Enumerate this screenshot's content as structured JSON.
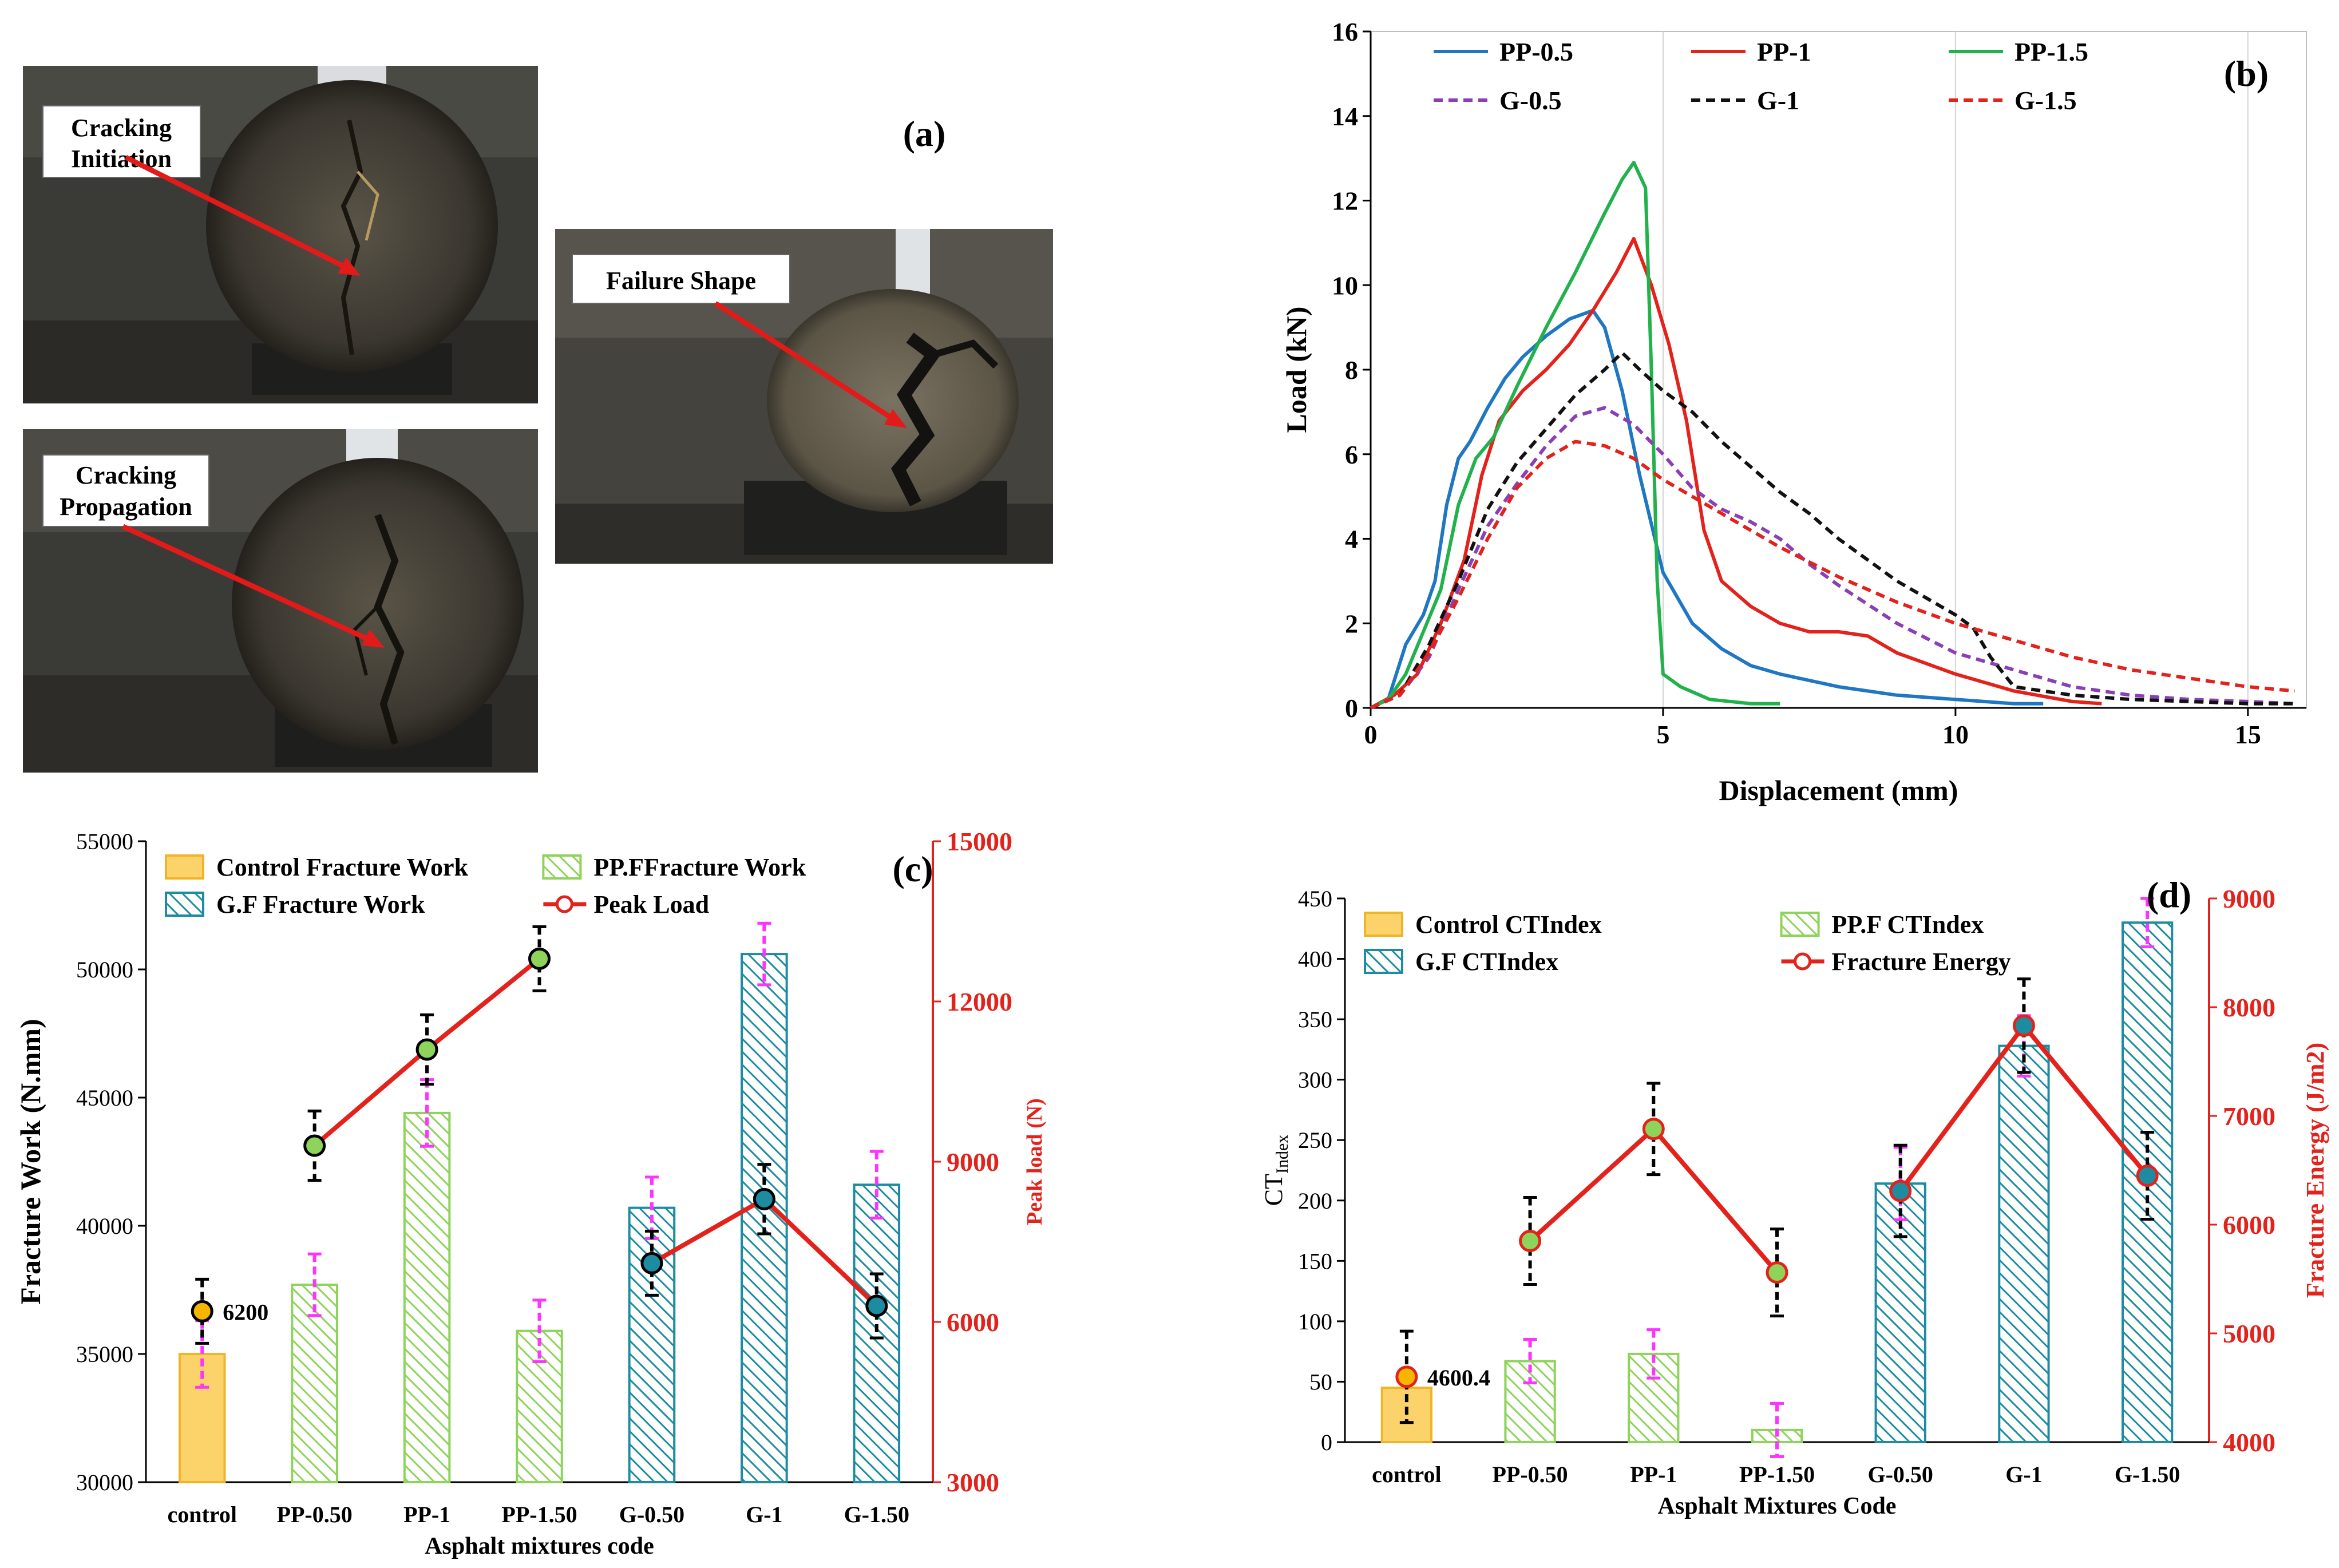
{
  "panel_a": {
    "label": "(a)",
    "photo_initiation": {
      "callout": [
        "Cracking",
        "Initiation"
      ]
    },
    "photo_propagation": {
      "callout": [
        "Cracking",
        "Propagation"
      ]
    },
    "photo_failure": {
      "callout": [
        "Failure Shape"
      ]
    }
  },
  "chart_data": [
    {
      "id": "b",
      "type": "line",
      "panel_label": "(b)",
      "xlabel": "Displacement (mm)",
      "ylabel": "Load (kN)",
      "xlim": [
        0,
        16
      ],
      "ylim": [
        0,
        16
      ],
      "xticks": [
        0,
        5,
        10,
        15
      ],
      "yticks": [
        0,
        2,
        4,
        6,
        8,
        10,
        12,
        14,
        16
      ],
      "grid": "vertical",
      "legend_position": "top",
      "series": [
        {
          "name": "PP-0.5",
          "color": "#1f77c4",
          "dash": "solid",
          "x": [
            0,
            0.3,
            0.6,
            0.9,
            1.1,
            1.3,
            1.5,
            1.7,
            2.0,
            2.3,
            2.6,
            3.0,
            3.4,
            3.8,
            4.0,
            4.3,
            4.6,
            5.0,
            5.5,
            6.0,
            6.5,
            7.0,
            8.0,
            9.0,
            10.0,
            11.0,
            11.5
          ],
          "y": [
            0,
            0.2,
            1.5,
            2.2,
            3.0,
            4.8,
            5.9,
            6.3,
            7.1,
            7.8,
            8.3,
            8.8,
            9.2,
            9.4,
            9.0,
            7.5,
            5.5,
            3.2,
            2.0,
            1.4,
            1.0,
            0.8,
            0.5,
            0.3,
            0.2,
            0.1,
            0.1
          ]
        },
        {
          "name": "PP-1",
          "color": "#e3221c",
          "dash": "solid",
          "x": [
            0,
            0.4,
            0.8,
            1.2,
            1.6,
            1.9,
            2.2,
            2.6,
            3.0,
            3.4,
            3.8,
            4.2,
            4.5,
            4.8,
            5.1,
            5.4,
            5.7,
            6.0,
            6.5,
            7.0,
            7.5,
            8.0,
            8.5,
            9.0,
            10.0,
            11.0,
            12.0,
            12.5
          ],
          "y": [
            0,
            0.3,
            0.8,
            2.0,
            3.5,
            5.5,
            6.8,
            7.5,
            8.0,
            8.6,
            9.4,
            10.3,
            11.1,
            10.0,
            8.6,
            6.8,
            4.2,
            3.0,
            2.4,
            2.0,
            1.8,
            1.8,
            1.7,
            1.3,
            0.8,
            0.4,
            0.15,
            0.1
          ]
        },
        {
          "name": "PP-1.5",
          "color": "#21b24b",
          "dash": "solid",
          "x": [
            0,
            0.3,
            0.6,
            0.9,
            1.2,
            1.5,
            1.8,
            2.1,
            2.5,
            3.0,
            3.5,
            4.0,
            4.3,
            4.5,
            4.7,
            4.8,
            4.9,
            5.0,
            5.3,
            5.8,
            6.5,
            7.0
          ],
          "y": [
            0,
            0.2,
            0.8,
            1.8,
            2.8,
            4.8,
            5.9,
            6.4,
            7.6,
            9.0,
            10.3,
            11.7,
            12.5,
            12.9,
            12.3,
            8.0,
            3.0,
            0.8,
            0.5,
            0.2,
            0.1,
            0.1
          ]
        },
        {
          "name": "G-0.5",
          "color": "#8a3fb5",
          "dash": "dashed",
          "x": [
            0,
            0.5,
            1.0,
            1.5,
            2.0,
            2.5,
            3.0,
            3.5,
            4.0,
            4.5,
            5.0,
            5.5,
            6.0,
            6.5,
            7.0,
            7.5,
            8.0,
            9.0,
            10.0,
            11.0,
            12.0,
            13.0,
            14.0,
            15.0,
            15.8
          ],
          "y": [
            0,
            0.3,
            1.2,
            2.8,
            4.3,
            5.3,
            6.2,
            6.9,
            7.1,
            6.7,
            6.0,
            5.2,
            4.7,
            4.4,
            4.0,
            3.4,
            2.9,
            2.0,
            1.3,
            0.9,
            0.5,
            0.3,
            0.2,
            0.15,
            0.1
          ]
        },
        {
          "name": "G-1",
          "color": "#111111",
          "dash": "dashed",
          "x": [
            0,
            0.5,
            1.0,
            1.5,
            2.0,
            2.5,
            3.0,
            3.5,
            4.0,
            4.3,
            4.6,
            5.0,
            5.5,
            6.0,
            6.5,
            7.0,
            7.5,
            8.0,
            8.5,
            9.0,
            9.5,
            10.0,
            10.3,
            10.6,
            11.0,
            12.0,
            13.0,
            14.0,
            15.0,
            15.8
          ],
          "y": [
            0,
            0.3,
            1.5,
            3.0,
            4.7,
            5.8,
            6.6,
            7.4,
            8.0,
            8.4,
            8.0,
            7.5,
            7.0,
            6.3,
            5.7,
            5.1,
            4.6,
            4.0,
            3.5,
            3.0,
            2.6,
            2.2,
            1.9,
            1.2,
            0.5,
            0.3,
            0.2,
            0.15,
            0.1,
            0.1
          ]
        },
        {
          "name": "G-1.5",
          "color": "#e3221c",
          "dash": "dashed",
          "x": [
            0,
            0.5,
            1.0,
            1.5,
            2.0,
            2.5,
            3.0,
            3.5,
            4.0,
            4.5,
            5.0,
            5.5,
            6.0,
            7.0,
            8.0,
            9.0,
            10.0,
            11.0,
            12.0,
            13.0,
            14.0,
            15.0,
            15.8
          ],
          "y": [
            0,
            0.3,
            1.3,
            2.6,
            4.0,
            5.2,
            5.9,
            6.3,
            6.2,
            5.9,
            5.4,
            5.0,
            4.6,
            3.8,
            3.1,
            2.5,
            2.0,
            1.6,
            1.2,
            0.9,
            0.7,
            0.5,
            0.4
          ]
        }
      ]
    },
    {
      "id": "c",
      "type": "bar",
      "panel_label": "(c)",
      "xlabel": "Asphalt mixtures code",
      "ylabel": "Fracture Work (N.mm)",
      "y2label": "Peak load (N)",
      "categories": [
        "control",
        "PP-0.50",
        "PP-1",
        "PP-1.50",
        "G-0.50",
        "G-1",
        "G-1.50"
      ],
      "ylim": [
        30000,
        55000
      ],
      "yticks": [
        30000,
        35000,
        40000,
        45000,
        50000,
        55000
      ],
      "y2lim": [
        3000,
        15000
      ],
      "y2ticks": [
        3000,
        6000,
        9000,
        12000,
        15000
      ],
      "legend_position": "top",
      "legend": [
        "Control  Fracture Work",
        "PP.FFracture Work",
        "G.F Fracture Work",
        "Peak Load"
      ],
      "bars": {
        "values": [
          35000,
          37700,
          44400,
          35900,
          40700,
          50600,
          41600
        ],
        "errors": [
          1300,
          1200,
          1300,
          1200,
          1200,
          1200,
          1300
        ],
        "groups": [
          "control",
          "pp",
          "pp",
          "pp",
          "g",
          "g",
          "g"
        ]
      },
      "peak_load": {
        "values": [
          6200,
          9300,
          11100,
          12800,
          7100,
          8300,
          6300
        ],
        "errors": [
          600,
          650,
          650,
          600,
          600,
          650,
          600
        ],
        "line_from_index": 1,
        "segments": [
          [
            1,
            3
          ],
          [
            4,
            6
          ]
        ]
      },
      "annotation": "6200",
      "colors": {
        "control": "#fcd36b",
        "pp": "#8ed35a",
        "g": "#1d8ca0",
        "line": "#e3221c"
      }
    },
    {
      "id": "d",
      "type": "bar",
      "panel_label": "(d)",
      "xlabel": "Asphalt Mixtures Code",
      "ylabel": "CT",
      "ylabel_sub": "Index",
      "y2label": "Fracture  Energy  (J/m2)",
      "categories": [
        "control",
        "PP-0.50",
        "PP-1",
        "PP-1.50",
        "G-0.50",
        "G-1",
        "G-1.50"
      ],
      "ylim": [
        0,
        450
      ],
      "yticks": [
        0,
        50,
        100,
        150,
        200,
        250,
        300,
        350,
        400,
        450
      ],
      "y2lim": [
        4000,
        9000
      ],
      "y2ticks": [
        4000,
        5000,
        6000,
        7000,
        8000,
        9000
      ],
      "legend_position": "top",
      "legend": [
        "Control  CTIndex",
        "PP.F CTIndex",
        "G.F CTIndex",
        "Fracture Energy"
      ],
      "bars": {
        "values": [
          45,
          67,
          73,
          10,
          214,
          328,
          430
        ],
        "errors": [
          0,
          18,
          20,
          22,
          30,
          25,
          20
        ],
        "groups": [
          "control",
          "pp",
          "pp",
          "pp",
          "g",
          "g",
          "g"
        ]
      },
      "fracture_energy": {
        "values": [
          4600.4,
          5850,
          6880,
          5560,
          6310,
          7830,
          6450
        ],
        "errors": [
          420,
          400,
          420,
          400,
          420,
          430,
          400
        ],
        "line_from_index": 1,
        "segments": [
          [
            1,
            3
          ],
          [
            4,
            6
          ]
        ]
      },
      "annotation": "4600.4",
      "colors": {
        "control": "#fcd36b",
        "pp": "#8ed35a",
        "g": "#1d8ca0",
        "line": "#e3221c"
      }
    }
  ]
}
